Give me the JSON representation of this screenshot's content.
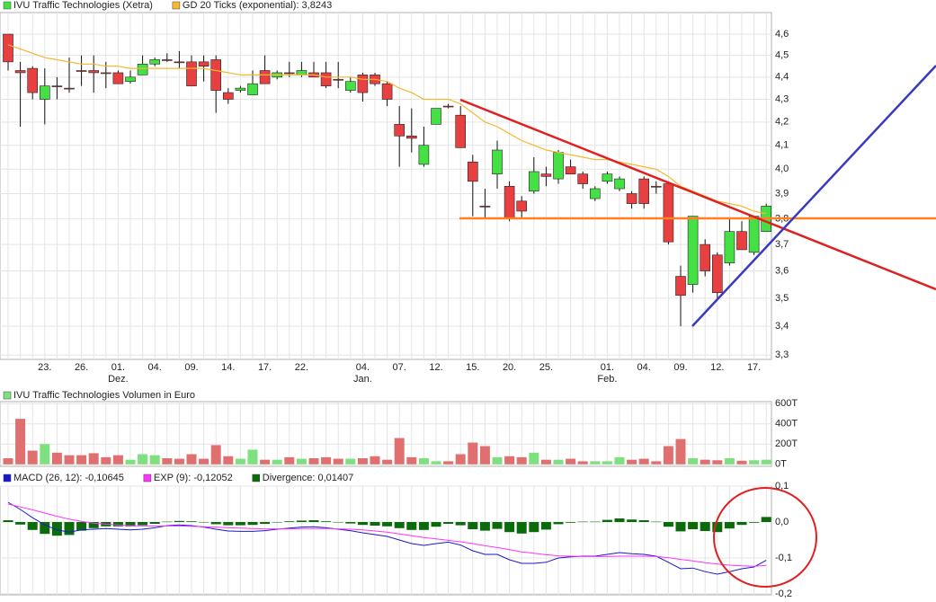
{
  "chart_data": [
    {
      "type": "candlestick",
      "log_scale": true,
      "grid": true,
      "categories": [
        null,
        null,
        null,
        "23.",
        null,
        null,
        "26.",
        null,
        null,
        "01.",
        null,
        null,
        "04.",
        null,
        null,
        "09.",
        null,
        null,
        "14.",
        null,
        null,
        "17.",
        null,
        null,
        "22.",
        null,
        null,
        null,
        null,
        "04.",
        null,
        null,
        "07.",
        null,
        null,
        "12.",
        null,
        null,
        "15.",
        null,
        null,
        "20.",
        null,
        null,
        "25.",
        null,
        null,
        null,
        null,
        "01.",
        null,
        null,
        "04.",
        null,
        null,
        "09.",
        null,
        null,
        "12.",
        null,
        null,
        "17.",
        null
      ],
      "months": [
        null,
        null,
        null,
        null,
        null,
        null,
        null,
        null,
        null,
        "Dez.",
        null,
        null,
        null,
        null,
        null,
        null,
        null,
        null,
        null,
        null,
        null,
        null,
        null,
        null,
        null,
        null,
        null,
        null,
        null,
        "Jan.",
        null,
        null,
        null,
        null,
        null,
        null,
        null,
        null,
        null,
        null,
        null,
        null,
        null,
        null,
        null,
        null,
        null,
        null,
        null,
        "Feb.",
        null,
        null,
        null,
        null,
        null,
        null,
        null,
        null,
        null,
        null,
        null,
        null,
        null
      ],
      "ylim": [
        3.285,
        4.704
      ],
      "yticks": [
        {
          "value": 3.3,
          "label": "3,3"
        },
        {
          "value": 3.4,
          "label": "3,4"
        },
        {
          "value": 3.5,
          "label": "3,5"
        },
        {
          "value": 3.6,
          "label": "3,6"
        },
        {
          "value": 3.7,
          "label": "3,7"
        },
        {
          "value": 3.8,
          "label": "3,8"
        },
        {
          "value": 3.9,
          "label": "3,9"
        },
        {
          "value": 4.0,
          "label": "4,0"
        },
        {
          "value": 4.1,
          "label": "4,1"
        },
        {
          "value": 4.2,
          "label": "4,2"
        },
        {
          "value": 4.3,
          "label": "4,3"
        },
        {
          "value": 4.4,
          "label": "4,4"
        },
        {
          "value": 4.5,
          "label": "4,5"
        },
        {
          "value": 4.6,
          "label": "4,6"
        }
      ],
      "series": [
        {
          "name": "IVU Traffic Technologies (Xetra)",
          "up_color": "#44e044",
          "down_color": "#e84040",
          "open": [
            4.6,
            4.43,
            4.44,
            4.3,
            4.36,
            4.35,
            4.43,
            4.43,
            4.42,
            4.42,
            4.38,
            4.41,
            4.46,
            4.48,
            4.47,
            4.47,
            4.47,
            4.48,
            4.33,
            4.34,
            4.32,
            4.43,
            4.4,
            4.42,
            4.41,
            4.42,
            4.42,
            4.39,
            4.34,
            4.41,
            4.41,
            4.37,
            4.19,
            4.14,
            4.02,
            4.19,
            4.27,
            4.23,
            4.03,
            3.85,
            3.98,
            3.93,
            3.87,
            3.91,
            3.98,
            3.96,
            4.01,
            3.98,
            3.88,
            3.95,
            3.92,
            3.9,
            3.96,
            3.93,
            3.94,
            3.58,
            3.55,
            3.7,
            3.66,
            3.63,
            3.75,
            3.67,
            3.75
          ],
          "high": [
            4.6,
            4.47,
            4.45,
            4.44,
            4.4,
            4.49,
            4.5,
            4.5,
            4.47,
            4.43,
            4.43,
            4.5,
            4.49,
            4.51,
            4.52,
            4.5,
            4.5,
            4.5,
            4.35,
            4.36,
            4.43,
            4.5,
            4.43,
            4.47,
            4.47,
            4.47,
            4.47,
            4.47,
            4.4,
            4.42,
            4.42,
            4.38,
            4.27,
            4.26,
            4.18,
            4.26,
            4.28,
            4.27,
            4.06,
            3.92,
            4.12,
            3.95,
            3.89,
            4.05,
            4.01,
            4.08,
            4.04,
            3.99,
            3.93,
            3.99,
            3.97,
            3.91,
            3.97,
            3.95,
            3.95,
            3.62,
            3.81,
            3.72,
            3.67,
            3.8,
            3.79,
            3.81,
            3.86
          ],
          "low": [
            4.43,
            4.18,
            4.3,
            4.19,
            4.3,
            4.33,
            4.36,
            4.33,
            4.35,
            4.37,
            4.37,
            4.41,
            4.45,
            4.47,
            4.44,
            4.36,
            4.38,
            4.24,
            4.28,
            4.33,
            4.32,
            4.37,
            4.39,
            4.4,
            4.4,
            4.4,
            4.35,
            4.35,
            4.33,
            4.29,
            4.36,
            4.27,
            4.01,
            4.07,
            4.01,
            4.19,
            4.26,
            4.09,
            3.81,
            3.8,
            3.92,
            3.79,
            3.8,
            3.9,
            3.93,
            3.94,
            3.98,
            3.92,
            3.87,
            3.94,
            3.91,
            3.84,
            3.84,
            3.9,
            3.7,
            3.4,
            3.52,
            3.58,
            3.5,
            3.62,
            3.68,
            3.66,
            3.75
          ],
          "close": [
            4.47,
            4.42,
            4.33,
            4.36,
            4.36,
            4.35,
            4.43,
            4.42,
            4.42,
            4.37,
            4.4,
            4.46,
            4.48,
            4.48,
            4.47,
            4.36,
            4.45,
            4.34,
            4.3,
            4.35,
            4.37,
            4.37,
            4.42,
            4.42,
            4.43,
            4.4,
            4.36,
            4.39,
            4.38,
            4.33,
            4.37,
            4.3,
            4.14,
            4.13,
            4.1,
            4.26,
            4.27,
            4.09,
            3.95,
            3.85,
            4.08,
            3.8,
            3.83,
            3.99,
            3.97,
            4.07,
            3.98,
            3.94,
            3.92,
            3.98,
            3.96,
            3.86,
            3.86,
            3.93,
            3.71,
            3.51,
            3.81,
            3.6,
            3.52,
            3.75,
            3.68,
            3.81,
            3.85
          ]
        },
        {
          "name": "GD 20 Ticks (exponential): 3,8243",
          "color": "#f5b82e",
          "values": [
            4.55,
            4.53,
            4.51,
            4.49,
            4.48,
            4.47,
            4.46,
            4.46,
            4.45,
            4.45,
            4.44,
            4.44,
            4.44,
            4.44,
            4.44,
            4.44,
            4.44,
            4.43,
            4.42,
            4.41,
            4.41,
            4.41,
            4.41,
            4.41,
            4.41,
            4.41,
            4.4,
            4.4,
            4.4,
            4.39,
            4.39,
            4.38,
            4.35,
            4.33,
            4.3,
            4.3,
            4.3,
            4.28,
            4.24,
            4.2,
            4.18,
            4.15,
            4.12,
            4.1,
            4.08,
            4.07,
            4.06,
            4.05,
            4.04,
            4.04,
            4.03,
            4.02,
            4.01,
            4.0,
            3.97,
            3.93,
            3.91,
            3.89,
            3.87,
            3.86,
            3.85,
            3.83,
            3.82
          ]
        }
      ]
    },
    {
      "type": "bar",
      "grid": true,
      "up_color": "#7ee07e",
      "down_color": "#e07070",
      "ylim": [
        -20,
        620
      ],
      "yticks": [
        {
          "value": 0,
          "label": "0T"
        },
        {
          "value": 200,
          "label": "200T"
        },
        {
          "value": 400,
          "label": "400T"
        },
        {
          "value": 600,
          "label": "600T"
        }
      ],
      "series": [
        {
          "name": "IVU Traffic Technologies Volumen in Euro",
          "values": [
            60,
            450,
            135,
            200,
            115,
            90,
            90,
            110,
            70,
            90,
            45,
            100,
            90,
            60,
            55,
            100,
            55,
            190,
            80,
            55,
            145,
            45,
            45,
            70,
            55,
            60,
            70,
            55,
            55,
            60,
            80,
            45,
            260,
            70,
            60,
            30,
            30,
            100,
            215,
            180,
            70,
            80,
            70,
            115,
            45,
            45,
            55,
            30,
            30,
            30,
            70,
            45,
            55,
            30,
            180,
            250,
            60,
            45,
            40,
            60,
            35,
            40,
            45
          ]
        }
      ]
    },
    {
      "type": "line",
      "grid": true,
      "ylim": [
        -0.2025,
        0.1
      ],
      "yticks": [
        {
          "value": -0.2,
          "label": "-0,2"
        },
        {
          "value": -0.1,
          "label": "-0,1"
        },
        {
          "value": 0,
          "label": "0,0"
        },
        {
          "value": 0.1,
          "label": "0,1"
        }
      ],
      "series": [
        {
          "name": "MACD (26, 12): -0,10645",
          "color": "#1a1acc",
          "values": [
            0.055,
            0.035,
            0.012,
            -0.008,
            -0.022,
            -0.028,
            -0.022,
            -0.02,
            -0.018,
            -0.02,
            -0.022,
            -0.02,
            -0.016,
            -0.01,
            -0.008,
            -0.01,
            -0.014,
            -0.02,
            -0.025,
            -0.026,
            -0.026,
            -0.024,
            -0.02,
            -0.017,
            -0.014,
            -0.013,
            -0.016,
            -0.02,
            -0.024,
            -0.03,
            -0.035,
            -0.04,
            -0.05,
            -0.06,
            -0.065,
            -0.06,
            -0.056,
            -0.064,
            -0.08,
            -0.09,
            -0.09,
            -0.105,
            -0.115,
            -0.115,
            -0.112,
            -0.1,
            -0.097,
            -0.095,
            -0.095,
            -0.09,
            -0.085,
            -0.088,
            -0.09,
            -0.095,
            -0.112,
            -0.13,
            -0.128,
            -0.138,
            -0.145,
            -0.138,
            -0.13,
            -0.125,
            -0.10645
          ]
        },
        {
          "name": "EXP (9): -0,12052",
          "color": "#ff33ff",
          "values": [
            0.05,
            0.042,
            0.034,
            0.025,
            0.016,
            0.008,
            0.002,
            -0.003,
            -0.006,
            -0.008,
            -0.01,
            -0.011,
            -0.011,
            -0.011,
            -0.011,
            -0.012,
            -0.013,
            -0.014,
            -0.016,
            -0.017,
            -0.018,
            -0.019,
            -0.019,
            -0.019,
            -0.018,
            -0.018,
            -0.018,
            -0.019,
            -0.02,
            -0.022,
            -0.025,
            -0.028,
            -0.033,
            -0.038,
            -0.043,
            -0.047,
            -0.051,
            -0.055,
            -0.06,
            -0.066,
            -0.071,
            -0.077,
            -0.083,
            -0.087,
            -0.091,
            -0.094,
            -0.095,
            -0.096,
            -0.096,
            -0.096,
            -0.095,
            -0.095,
            -0.095,
            -0.096,
            -0.099,
            -0.104,
            -0.108,
            -0.113,
            -0.117,
            -0.12,
            -0.122,
            -0.123,
            -0.12052
          ]
        },
        {
          "name": "Divergence: 0,01407",
          "color": "#0a6b0a",
          "type": "bar",
          "values": [
            0.005,
            -0.007,
            -0.022,
            -0.033,
            -0.038,
            -0.036,
            -0.024,
            -0.017,
            -0.012,
            -0.012,
            -0.012,
            -0.009,
            -0.005,
            0.001,
            0.003,
            0.002,
            -0.001,
            -0.006,
            -0.009,
            -0.009,
            -0.008,
            -0.005,
            -0.001,
            0.002,
            0.004,
            0.005,
            0.002,
            -0.001,
            -0.004,
            -0.008,
            -0.01,
            -0.012,
            -0.017,
            -0.022,
            -0.022,
            -0.013,
            -0.005,
            -0.009,
            -0.02,
            -0.024,
            -0.019,
            -0.028,
            -0.032,
            -0.028,
            -0.021,
            -0.006,
            -0.002,
            0.001,
            0.001,
            0.006,
            0.01,
            0.007,
            0.005,
            0.001,
            -0.013,
            -0.026,
            -0.02,
            -0.025,
            -0.028,
            -0.018,
            -0.008,
            -0.002,
            0.01407
          ]
        }
      ]
    }
  ]
}
